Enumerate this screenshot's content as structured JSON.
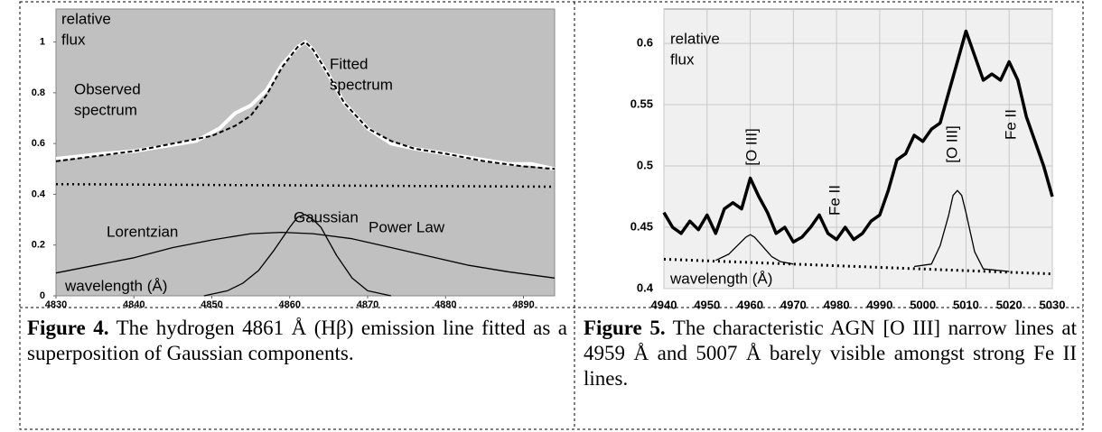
{
  "figures": [
    {
      "chart_data": {
        "type": "line",
        "xlim": [
          4830,
          4894
        ],
        "ylim": [
          0,
          1.13
        ],
        "xticks": [
          4830,
          4840,
          4850,
          4860,
          4870,
          4880,
          4890
        ],
        "yticks": [
          0,
          0.2,
          0.4,
          0.6,
          0.8,
          1
        ],
        "grid": false,
        "series": [
          {
            "color": "#ffffff",
            "style": "solid",
            "width": 4,
            "x": [
              4830,
              4833,
              4836,
              4840,
              4844,
              4848,
              4851,
              4853,
              4855,
              4857,
              4859,
              4861,
              4862,
              4863,
              4865,
              4867,
              4870,
              4873,
              4876,
              4880,
              4884,
              4888,
              4891,
              4894
            ],
            "values": [
              0.54,
              0.55,
              0.56,
              0.57,
              0.59,
              0.61,
              0.66,
              0.72,
              0.75,
              0.81,
              0.91,
              0.98,
              1.0,
              0.97,
              0.87,
              0.76,
              0.66,
              0.6,
              0.58,
              0.56,
              0.54,
              0.52,
              0.52,
              0.5
            ]
          },
          {
            "color": "#000000",
            "style": "dashed",
            "width": 2,
            "x": [
              4830,
              4835,
              4840,
              4845,
              4850,
              4853,
              4855,
              4857,
              4859,
              4861,
              4862,
              4863,
              4865,
              4867,
              4870,
              4873,
              4876,
              4880,
              4885,
              4890,
              4894
            ],
            "values": [
              0.53,
              0.55,
              0.57,
              0.6,
              0.63,
              0.67,
              0.71,
              0.79,
              0.9,
              0.98,
              1.0,
              0.97,
              0.87,
              0.76,
              0.66,
              0.61,
              0.58,
              0.56,
              0.53,
              0.51,
              0.5
            ]
          },
          {
            "color": "#000000",
            "style": "dotted",
            "width": 2.5,
            "x": [
              4830,
              4894
            ],
            "values": [
              0.44,
              0.43
            ]
          },
          {
            "color": "#000000",
            "style": "solid",
            "width": 1.3,
            "x": [
              4830,
              4835,
              4840,
              4845,
              4850,
              4855,
              4859,
              4863,
              4868,
              4873,
              4878,
              4883,
              4888,
              4894
            ],
            "values": [
              0.09,
              0.12,
              0.15,
              0.19,
              0.22,
              0.245,
              0.25,
              0.245,
              0.225,
              0.19,
              0.155,
              0.12,
              0.095,
              0.07
            ]
          },
          {
            "color": "#000000",
            "style": "solid",
            "width": 1.3,
            "x": [
              4849,
              4852,
              4854,
              4856,
              4858,
              4860,
              4861,
              4862,
              4863,
              4864,
              4866,
              4868,
              4870,
              4873
            ],
            "values": [
              0,
              0.02,
              0.05,
              0.1,
              0.18,
              0.27,
              0.31,
              0.32,
              0.3,
              0.27,
              0.16,
              0.07,
              0.02,
              0
            ]
          }
        ],
        "annotations": [
          [
            "relative",
            "flux"
          ],
          [
            "Observed",
            "spectrum"
          ],
          [
            "Fitted",
            "spectrum"
          ],
          [
            "Power Law"
          ],
          [
            "Lorentzian"
          ],
          [
            "Gaussian"
          ],
          [
            "wavelength (Å)"
          ]
        ]
      },
      "caption": {
        "label": "Figure 4.",
        "text": "The hydrogen 4861 Å (Hβ) emission line fitted as a superposition of Gaussian components."
      }
    },
    {
      "chart_data": {
        "type": "line",
        "xlim": [
          4940,
          5030
        ],
        "ylim": [
          0.4,
          0.628
        ],
        "xticks": [
          4940,
          4950,
          4960,
          4970,
          4980,
          4990,
          5000,
          5010,
          5020,
          5030
        ],
        "yticks": [
          0.4,
          0.45,
          0.5,
          0.55,
          0.6
        ],
        "grid": true,
        "series": [
          {
            "color": "#000000",
            "style": "solid",
            "width": 3.5,
            "x": [
              4940,
              4942,
              4944,
              4946,
              4948,
              4950,
              4952,
              4954,
              4956,
              4958,
              4960,
              4962,
              4964,
              4966,
              4968,
              4970,
              4972,
              4974,
              4976,
              4978,
              4980,
              4982,
              4984,
              4986,
              4988,
              4990,
              4992,
              4994,
              4996,
              4998,
              5000,
              5002,
              5004,
              5006,
              5008,
              5010,
              5012,
              5014,
              5016,
              5018,
              5020,
              5022,
              5024,
              5026,
              5028,
              5030
            ],
            "values": [
              0.462,
              0.45,
              0.445,
              0.455,
              0.448,
              0.46,
              0.445,
              0.465,
              0.47,
              0.465,
              0.49,
              0.475,
              0.462,
              0.445,
              0.45,
              0.438,
              0.442,
              0.45,
              0.46,
              0.445,
              0.44,
              0.45,
              0.44,
              0.445,
              0.455,
              0.46,
              0.48,
              0.505,
              0.51,
              0.525,
              0.52,
              0.53,
              0.535,
              0.56,
              0.585,
              0.61,
              0.59,
              0.57,
              0.575,
              0.57,
              0.585,
              0.57,
              0.54,
              0.52,
              0.5,
              0.475
            ]
          },
          {
            "color": "#000000",
            "style": "solid",
            "width": 1.3,
            "x": [
              4952,
              4955,
              4957,
              4959,
              4960,
              4961,
              4963,
              4965,
              4967,
              4970
            ],
            "values": [
              0.423,
              0.428,
              0.435,
              0.442,
              0.444,
              0.442,
              0.434,
              0.426,
              0.422,
              0.42
            ]
          },
          {
            "color": "#000000",
            "style": "solid",
            "width": 1.3,
            "x": [
              4998,
              5002,
              5004,
              5006,
              5007,
              5008,
              5009,
              5010,
              5012,
              5014,
              5020
            ],
            "values": [
              0.418,
              0.42,
              0.435,
              0.46,
              0.476,
              0.48,
              0.476,
              0.462,
              0.43,
              0.416,
              0.414
            ]
          },
          {
            "color": "#000000",
            "style": "dotted",
            "width": 3,
            "x": [
              4940,
              5030
            ],
            "values": [
              0.424,
              0.412
            ]
          }
        ],
        "annotations": [
          [
            "relative",
            "flux"
          ],
          [
            "[O III]"
          ],
          [
            "Fe II"
          ],
          [
            "[O III]"
          ],
          [
            "Fe II"
          ],
          [
            "wavelength (Å)"
          ]
        ]
      },
      "caption": {
        "label": "Figure 5.",
        "text": "The characteristic AGN [O III] narrow lines at 4959 Å and 5007 Å barely visible amongst strong Fe II lines."
      }
    }
  ]
}
